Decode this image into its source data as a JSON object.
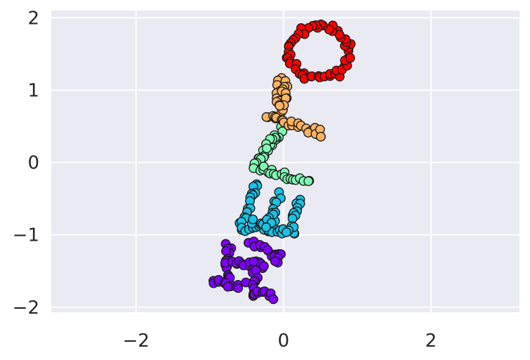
{
  "chart_data": {
    "type": "scatter",
    "title": "",
    "xlabel": "",
    "ylabel": "",
    "xlim": [
      -3.15,
      3.2
    ],
    "ylim": [
      -2.07,
      2.1
    ],
    "xticks": [
      -2,
      0,
      2
    ],
    "yticks": [
      -2,
      -1,
      0,
      1,
      2
    ],
    "xtick_labels": [
      "−2",
      "0",
      "2"
    ],
    "ytick_labels": [
      "−2",
      "−1",
      "0",
      "1",
      "2"
    ],
    "grid": true,
    "style": {
      "background": "#eaeaf2",
      "grid_color": "#ffffff",
      "marker_edge": "#1a1a1a"
    },
    "series": [
      {
        "color": "#7f00ff",
        "stroke_sets": [
          [
            [
              -0.95,
              -1.64
            ],
            [
              -0.55,
              -1.7
            ]
          ],
          [
            [
              -0.75,
              -1.12
            ],
            [
              -0.75,
              -1.68
            ]
          ],
          [
            [
              -0.75,
              -1.38
            ],
            [
              -0.25,
              -1.42
            ]
          ],
          [
            [
              -0.45,
              -1.1
            ],
            [
              -0.05,
              -1.3
            ]
          ],
          [
            [
              -0.38,
              -1.4
            ],
            [
              -0.38,
              -1.8
            ]
          ],
          [
            [
              -0.42,
              -1.78
            ],
            [
              -0.1,
              -1.85
            ]
          ],
          [
            [
              -0.08,
              -1.28
            ],
            [
              -0.08,
              -1.4
            ]
          ]
        ]
      },
      {
        "color": "#18c3e6",
        "stroke_sets": [
          [
            [
              -0.38,
              -0.3
            ],
            [
              -0.58,
              -0.9
            ]
          ],
          [
            [
              -0.58,
              -0.9
            ],
            [
              0.15,
              -0.95
            ]
          ],
          [
            [
              -0.42,
              -0.8
            ],
            [
              -0.15,
              -0.85
            ]
          ],
          [
            [
              -0.05,
              -0.45
            ],
            [
              -0.22,
              -0.88
            ]
          ],
          [
            [
              0.22,
              -0.52
            ],
            [
              0.08,
              -0.95
            ]
          ]
        ]
      },
      {
        "color": "#80ffb4",
        "stroke_sets": [
          [
            [
              -0.02,
              0.45
            ],
            [
              -0.42,
              -0.08
            ]
          ],
          [
            [
              -0.4,
              -0.05
            ],
            [
              0.35,
              -0.28
            ]
          ],
          [
            [
              -0.12,
              0.4
            ],
            [
              -0.22,
              0.22
            ]
          ]
        ]
      },
      {
        "color": "#ffb360",
        "stroke_sets": [
          [
            [
              -0.05,
              1.15
            ],
            [
              -0.05,
              0.7
            ]
          ],
          [
            [
              -0.25,
              0.65
            ],
            [
              0.55,
              0.4
            ]
          ],
          [
            [
              0.05,
              1.12
            ],
            [
              -0.02,
              0.8
            ]
          ]
        ]
      },
      {
        "color": "#ff0000",
        "ellipse": {
          "cx": 0.48,
          "cy": 1.52,
          "rx": 0.4,
          "ry": 0.36,
          "n": 54
        }
      }
    ]
  }
}
